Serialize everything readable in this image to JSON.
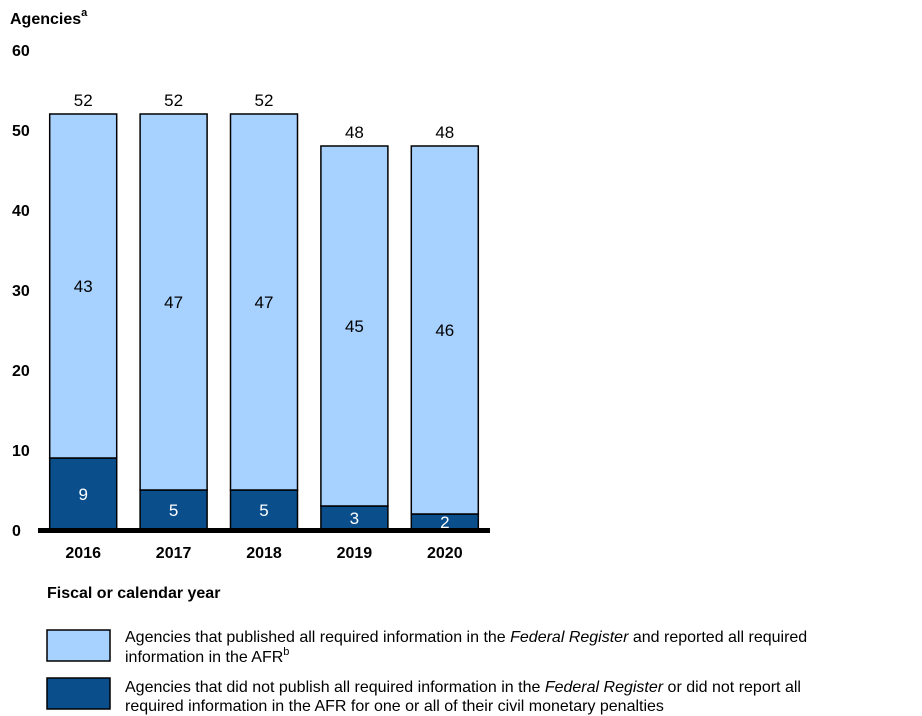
{
  "chart_data": {
    "type": "bar",
    "stacked": true,
    "categories": [
      "2016",
      "2017",
      "2018",
      "2019",
      "2020"
    ],
    "series": [
      {
        "name": "Agencies that did not publish all required information in the Federal Register or did not report all required information in the AFR for one or all of their civil monetary penalties",
        "values": [
          9,
          5,
          5,
          3,
          2
        ],
        "color": "#0a4f8c"
      },
      {
        "name": "Agencies that published all required information in the Federal Register and reported all required information in the AFR",
        "values": [
          43,
          47,
          47,
          45,
          46
        ],
        "color": "#a7d1ff"
      }
    ],
    "totals": [
      52,
      52,
      52,
      48,
      48
    ],
    "ylabel": "Agencies",
    "ylabel_superscript": "a",
    "xlabel": "Fiscal or calendar year",
    "ylim": [
      0,
      60
    ],
    "yticks": [
      "0",
      "10",
      "20",
      "30",
      "40",
      "50",
      "60"
    ],
    "grid": false,
    "legend_placement": "bottom",
    "legend": [
      {
        "parts": [
          "Agencies that published all required information in the ",
          "Federal Register",
          " and reported all required"
        ],
        "line2": "information in the AFR",
        "line2_superscript": "b",
        "color": "#a7d1ff"
      },
      {
        "parts": [
          "Agencies that did not publish all required information in the ",
          "Federal Register",
          " or did not report all"
        ],
        "line2": "required information in the AFR for one or all of their civil monetary penalties",
        "line2_superscript": "",
        "color": "#0a4f8c"
      }
    ]
  }
}
